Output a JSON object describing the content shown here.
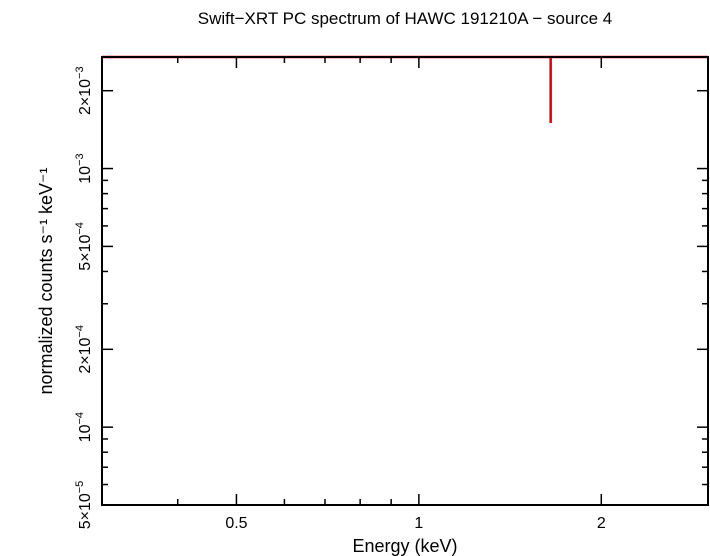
{
  "chart_data": {
    "type": "scatter",
    "title": "Swift−XRT PC spectrum of HAWC 191210A − source 4",
    "xlabel": "Energy (keV)",
    "ylabel": "normalized counts s⁻¹ keV⁻¹",
    "x_scale": "log",
    "y_scale": "log",
    "xlim": [
      0.3,
      3.0
    ],
    "ylim": [
      5e-05,
      0.0027
    ],
    "x_ticks": [
      {
        "value": 0.5,
        "label": "0.5"
      },
      {
        "value": 1,
        "label": "1"
      },
      {
        "value": 2,
        "label": "2"
      }
    ],
    "y_ticks": [
      {
        "value": 5e-05,
        "base": "5×10",
        "exp": "−5"
      },
      {
        "value": 0.0001,
        "base": "10",
        "exp": "−4"
      },
      {
        "value": 0.0002,
        "base": "2×10",
        "exp": "−4"
      },
      {
        "value": 0.0005,
        "base": "5×10",
        "exp": "−4"
      },
      {
        "value": 0.001,
        "base": "10",
        "exp": "−3"
      },
      {
        "value": 0.002,
        "base": "2×10",
        "exp": "−3"
      }
    ],
    "series": [
      {
        "color": "#e00000",
        "points": [
          {
            "x": 1.65,
            "xerr": [
              1.35,
              1.35
            ],
            "y": 0.0027,
            "yerr_low": 0.0015,
            "yerr_high": 0.0027
          }
        ]
      }
    ],
    "grid": false
  }
}
